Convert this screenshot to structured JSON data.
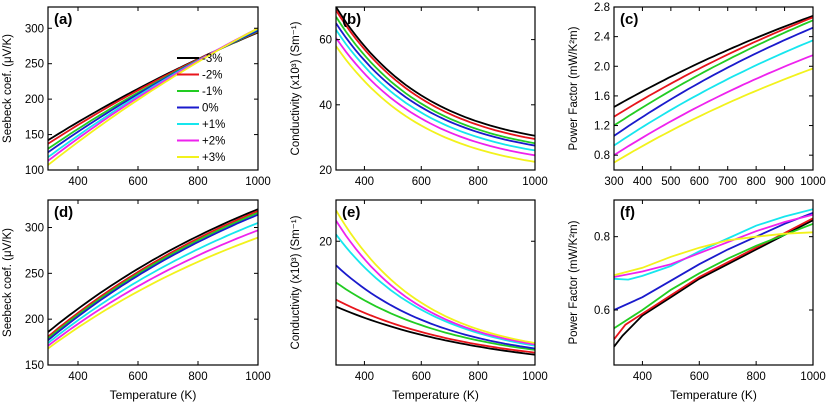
{
  "figure": {
    "series_names": [
      "-3%",
      "-2%",
      "-1%",
      "0%",
      "+1%",
      "+2%",
      "+3%"
    ],
    "series_colors": [
      "#000000",
      "#e8141b",
      "#22cc22",
      "#1a1acc",
      "#16e6ee",
      "#ee22ee",
      "#f2f21c"
    ]
  },
  "chart_data": [
    {
      "type": "line",
      "panel_label": "(a)",
      "xlabel": "",
      "ylabel": "Seebeck coef. (μV/K)",
      "xlim": [
        300,
        1000
      ],
      "ylim": [
        100,
        330
      ],
      "xticks": [
        400,
        600,
        800,
        1000
      ],
      "yticks": [
        100,
        150,
        200,
        250,
        300
      ],
      "legend": "right",
      "x": [
        300,
        1000
      ],
      "series": [
        {
          "name": "-3%",
          "start": 142,
          "end": 294,
          "curve": 0.4
        },
        {
          "name": "-2%",
          "start": 137,
          "end": 295,
          "curve": 0.4
        },
        {
          "name": "-1%",
          "start": 130,
          "end": 296,
          "curve": 0.4
        },
        {
          "name": "0%",
          "start": 125,
          "end": 297,
          "curve": 0.4
        },
        {
          "name": "+1%",
          "start": 118,
          "end": 299,
          "curve": 0.4
        },
        {
          "name": "+2%",
          "start": 113,
          "end": 300,
          "curve": 0.4
        },
        {
          "name": "+3%",
          "start": 107,
          "end": 300,
          "curve": 0.4
        }
      ]
    },
    {
      "type": "line",
      "panel_label": "(b)",
      "xlabel": "",
      "ylabel": "Conductivity (x10³) (Sm⁻¹)",
      "xlim": [
        300,
        1000
      ],
      "ylim": [
        20,
        70
      ],
      "xticks": [
        400,
        600,
        800,
        1000
      ],
      "yticks": [
        20,
        40,
        60
      ],
      "x": [
        300,
        1000
      ],
      "series": [
        {
          "name": "-3%",
          "start": 70,
          "end": 30.5,
          "curve": 2.2
        },
        {
          "name": "-2%",
          "start": 69,
          "end": 29.5,
          "curve": 2.2
        },
        {
          "name": "-1%",
          "start": 67,
          "end": 28.2,
          "curve": 2.2
        },
        {
          "name": "0%",
          "start": 65,
          "end": 27.5,
          "curve": 2.2
        },
        {
          "name": "+1%",
          "start": 63,
          "end": 26,
          "curve": 2.2
        },
        {
          "name": "+2%",
          "start": 60.5,
          "end": 24.5,
          "curve": 2.2
        },
        {
          "name": "+3%",
          "start": 58,
          "end": 22.5,
          "curve": 2.2
        }
      ]
    },
    {
      "type": "line",
      "panel_label": "(c)",
      "xlabel": "",
      "ylabel": "Power Factor (mW/K²m)",
      "xlim": [
        300,
        1000
      ],
      "ylim": [
        0.6,
        2.8
      ],
      "xticks": [
        300,
        400,
        500,
        600,
        700,
        800,
        900,
        1000
      ],
      "yticks": [
        0.8,
        1.2,
        1.6,
        2.0,
        2.4,
        2.8
      ],
      "x": [
        300,
        1000
      ],
      "series": [
        {
          "name": "-3%",
          "start": 1.45,
          "end": 2.68,
          "curve": 0.45
        },
        {
          "name": "-2%",
          "start": 1.32,
          "end": 2.66,
          "curve": 0.45
        },
        {
          "name": "-1%",
          "start": 1.2,
          "end": 2.62,
          "curve": 0.45
        },
        {
          "name": "0%",
          "start": 1.06,
          "end": 2.52,
          "curve": 0.5
        },
        {
          "name": "+1%",
          "start": 0.93,
          "end": 2.35,
          "curve": 0.5
        },
        {
          "name": "+2%",
          "start": 0.8,
          "end": 2.15,
          "curve": 0.5
        },
        {
          "name": "+3%",
          "start": 0.7,
          "end": 1.97,
          "curve": 0.5
        }
      ]
    },
    {
      "type": "line",
      "panel_label": "(d)",
      "xlabel": "Temperature (K)",
      "ylabel": "Seebeck coef. (μV/K)",
      "xlim": [
        300,
        1000
      ],
      "ylim": [
        150,
        330
      ],
      "xticks": [
        400,
        600,
        800,
        1000
      ],
      "yticks": [
        150,
        200,
        250,
        300
      ],
      "x": [
        300,
        1000
      ],
      "series": [
        {
          "name": "-3%",
          "start": 186,
          "end": 320,
          "curve": 0.7
        },
        {
          "name": "-2%",
          "start": 181,
          "end": 318,
          "curve": 0.7
        },
        {
          "name": "-1%",
          "start": 179,
          "end": 316,
          "curve": 0.7
        },
        {
          "name": "0%",
          "start": 177,
          "end": 314,
          "curve": 0.7
        },
        {
          "name": "+1%",
          "start": 174,
          "end": 305,
          "curve": 0.7
        },
        {
          "name": "+2%",
          "start": 171,
          "end": 297,
          "curve": 0.7
        },
        {
          "name": "+3%",
          "start": 168,
          "end": 289,
          "curve": 0.7
        }
      ]
    },
    {
      "type": "line",
      "panel_label": "(e)",
      "xlabel": "Temperature (K)",
      "ylabel": "Conductivity (x10³) (Sm⁻¹)",
      "xlim": [
        300,
        1000
      ],
      "ylim": [
        2,
        26
      ],
      "xticks": [
        400,
        600,
        800,
        1000
      ],
      "yticks": [
        20
      ],
      "x": [
        300,
        1000
      ],
      "series": [
        {
          "name": "-3%",
          "start": 10.5,
          "end": 3.5,
          "curve": 1.3
        },
        {
          "name": "-2%",
          "start": 11.5,
          "end": 3.8,
          "curve": 1.5
        },
        {
          "name": "-1%",
          "start": 14,
          "end": 4.2,
          "curve": 1.7
        },
        {
          "name": "0%",
          "start": 16.5,
          "end": 4.4,
          "curve": 1.9
        },
        {
          "name": "+1%",
          "start": 21,
          "end": 4.8,
          "curve": 2.1
        },
        {
          "name": "+2%",
          "start": 23,
          "end": 5.0,
          "curve": 2.3
        },
        {
          "name": "+3%",
          "start": 24.5,
          "end": 5.2,
          "curve": 2.3
        }
      ]
    },
    {
      "type": "line",
      "panel_label": "(f)",
      "xlabel": "Temperature (K)",
      "ylabel": "Power Factor (mW/K²m)",
      "xlim": [
        300,
        1000
      ],
      "ylim": [
        0.45,
        0.9
      ],
      "xticks": [
        400,
        600,
        800,
        1000
      ],
      "yticks": [
        0.6,
        0.8
      ],
      "x": [
        300,
        1000
      ],
      "series": [
        {
          "name": "-3%",
          "points": [
            [
              300,
              0.5
            ],
            [
              330,
              0.53
            ],
            [
              400,
              0.585
            ],
            [
              500,
              0.635
            ],
            [
              600,
              0.685
            ],
            [
              700,
              0.725
            ],
            [
              800,
              0.765
            ],
            [
              900,
              0.805
            ],
            [
              1000,
              0.845
            ]
          ]
        },
        {
          "name": "-2%",
          "points": [
            [
              300,
              0.52
            ],
            [
              340,
              0.56
            ],
            [
              400,
              0.59
            ],
            [
              500,
              0.64
            ],
            [
              600,
              0.69
            ],
            [
              700,
              0.73
            ],
            [
              800,
              0.77
            ],
            [
              900,
              0.81
            ],
            [
              1000,
              0.85
            ]
          ]
        },
        {
          "name": "-1%",
          "points": [
            [
              300,
              0.55
            ],
            [
              400,
              0.6
            ],
            [
              500,
              0.655
            ],
            [
              600,
              0.7
            ],
            [
              700,
              0.74
            ],
            [
              800,
              0.775
            ],
            [
              900,
              0.805
            ],
            [
              1000,
              0.835
            ]
          ]
        },
        {
          "name": "0%",
          "points": [
            [
              300,
              0.6
            ],
            [
              400,
              0.635
            ],
            [
              500,
              0.68
            ],
            [
              600,
              0.725
            ],
            [
              700,
              0.765
            ],
            [
              800,
              0.8
            ],
            [
              900,
              0.835
            ],
            [
              1000,
              0.865
            ]
          ]
        },
        {
          "name": "+1%",
          "points": [
            [
              300,
              0.685
            ],
            [
              350,
              0.683
            ],
            [
              400,
              0.693
            ],
            [
              500,
              0.72
            ],
            [
              600,
              0.76
            ],
            [
              700,
              0.795
            ],
            [
              800,
              0.83
            ],
            [
              900,
              0.855
            ],
            [
              1000,
              0.875
            ]
          ]
        },
        {
          "name": "+2%",
          "points": [
            [
              300,
              0.69
            ],
            [
              400,
              0.705
            ],
            [
              500,
              0.725
            ],
            [
              600,
              0.755
            ],
            [
              700,
              0.785
            ],
            [
              800,
              0.815
            ],
            [
              900,
              0.84
            ],
            [
              1000,
              0.86
            ]
          ]
        },
        {
          "name": "+3%",
          "points": [
            [
              300,
              0.695
            ],
            [
              400,
              0.715
            ],
            [
              500,
              0.745
            ],
            [
              600,
              0.77
            ],
            [
              700,
              0.79
            ],
            [
              800,
              0.8
            ],
            [
              900,
              0.808
            ],
            [
              1000,
              0.812
            ]
          ]
        }
      ]
    }
  ]
}
